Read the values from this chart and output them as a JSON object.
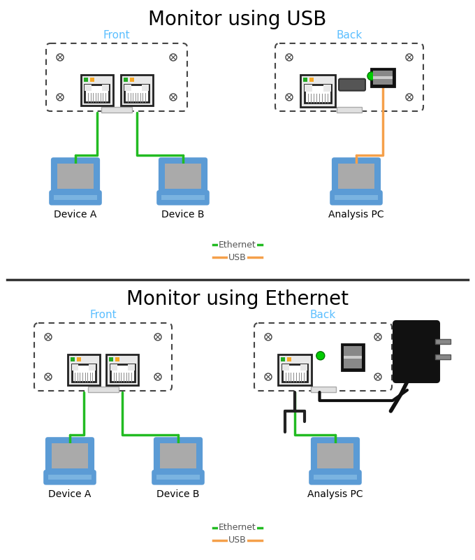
{
  "title_usb": "Monitor using USB",
  "title_eth": "Monitor using Ethernet",
  "front_label": "Front",
  "back_label": "Back",
  "device_a_label": "Device A",
  "device_b_label": "Device B",
  "analysis_pc_label": "Analysis PC",
  "ethernet_label": "Ethernet",
  "usb_label": "USB",
  "ethernet_color": "#22bb22",
  "usb_color": "#f5a04a",
  "label_color": "#5bbfff",
  "bg_color": "#ffffff",
  "device_blue": "#5b9bd5",
  "device_blue_light": "#7ab3e0",
  "screen_gray": "#aaaaaa",
  "panel_border": "#444444",
  "screw_color": "#444444",
  "green_ind": "#22aa22",
  "orange_ind": "#f5a623",
  "led_green": "#00cc00",
  "usb_port_dark": "#222222",
  "port_bg": "#dddddd"
}
